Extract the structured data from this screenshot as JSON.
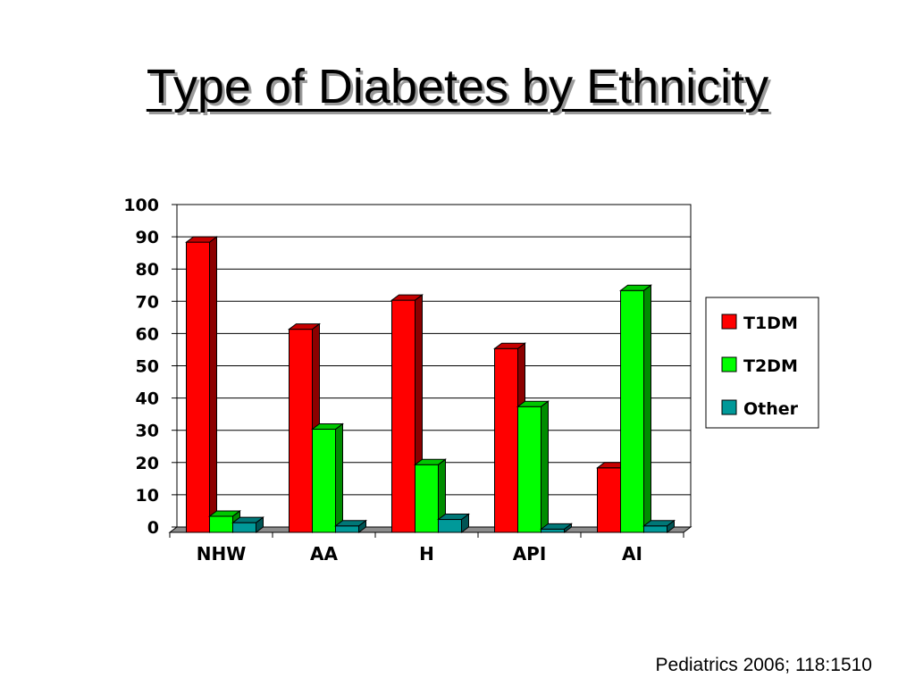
{
  "slide": {
    "title": "Type of Diabetes by Ethnicity",
    "citation": "Pediatrics 2006; 118:1510"
  },
  "chart_data": {
    "type": "bar",
    "title": "",
    "xlabel": "",
    "ylabel": "",
    "categories": [
      "NHW",
      "AA",
      "H",
      "API",
      "AI"
    ],
    "series": [
      {
        "name": "T1DM",
        "values": [
          90,
          63,
          72,
          57,
          20
        ],
        "color": "#ff0000"
      },
      {
        "name": "T2DM",
        "values": [
          5,
          32,
          21,
          39,
          75
        ],
        "color": "#00ff00"
      },
      {
        "name": "Other",
        "values": [
          3,
          2,
          4,
          1,
          2
        ],
        "color": "#009999"
      }
    ],
    "ylim": [
      0,
      100
    ],
    "yticks": [
      0,
      10,
      20,
      30,
      40,
      50,
      60,
      70,
      80,
      90,
      100
    ],
    "grid": true,
    "legend_position": "right",
    "style": "3d-column"
  }
}
